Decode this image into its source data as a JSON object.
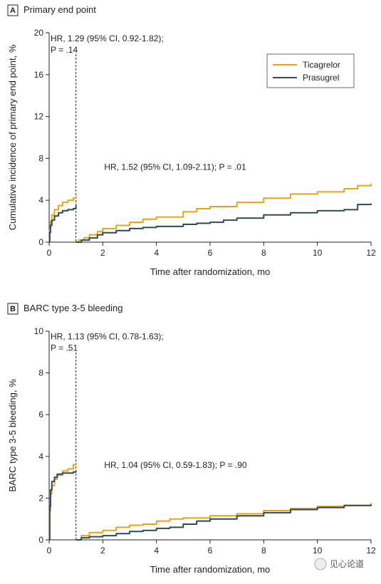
{
  "colors": {
    "ticagrelor": "#e8a317",
    "prasugrel": "#2e4a55"
  },
  "chart_data": [
    {
      "type": "line",
      "panel_letter": "A",
      "title": "Primary end point",
      "xlabel": "Time after randomization, mo",
      "ylabel": "Cumulative incidence of primary end point, %",
      "xlim": [
        0,
        12
      ],
      "ylim": [
        0,
        20
      ],
      "xticks": [
        0,
        2,
        4,
        6,
        8,
        10,
        12
      ],
      "yticks": [
        0,
        4,
        8,
        12,
        16,
        20
      ],
      "landmark_x": 1,
      "annotations": [
        {
          "lines": [
            "HR, 1.29 (95% CI, 0.92-1.82);",
            "P = .14"
          ],
          "anchor": [
            0,
            19.2
          ]
        },
        {
          "lines": [
            "HR, 1.52 (95% CI, 1.09-2.11); P = .01"
          ],
          "anchor": [
            2,
            6.9
          ]
        }
      ],
      "legend": {
        "placement": "top-right",
        "entries": [
          "Ticagrelor",
          "Prasugrel"
        ]
      },
      "series": [
        {
          "name": "Ticagrelor",
          "color_key": "ticagrelor",
          "segments": [
            [
              [
                0,
                0
              ],
              [
                0.02,
                1.2
              ],
              [
                0.05,
                2.0
              ],
              [
                0.1,
                2.6
              ],
              [
                0.2,
                3.1
              ],
              [
                0.35,
                3.5
              ],
              [
                0.5,
                3.8
              ],
              [
                0.7,
                4.0
              ],
              [
                0.9,
                4.2
              ],
              [
                1.0,
                4.4
              ]
            ],
            [
              [
                1.0,
                0
              ],
              [
                1.1,
                0.2
              ],
              [
                1.3,
                0.4
              ],
              [
                1.5,
                0.7
              ],
              [
                1.8,
                1.0
              ],
              [
                2.0,
                1.3
              ],
              [
                2.5,
                1.6
              ],
              [
                3.0,
                1.9
              ],
              [
                3.5,
                2.2
              ],
              [
                4,
                2.4
              ],
              [
                5,
                2.9
              ],
              [
                5.5,
                3.2
              ],
              [
                6,
                3.4
              ],
              [
                7,
                3.8
              ],
              [
                8,
                4.2
              ],
              [
                9,
                4.6
              ],
              [
                10,
                4.8
              ],
              [
                11,
                5.1
              ],
              [
                11.5,
                5.4
              ],
              [
                12,
                5.6
              ]
            ]
          ]
        },
        {
          "name": "Prasugrel",
          "color_key": "prasugrel",
          "segments": [
            [
              [
                0,
                0
              ],
              [
                0.02,
                0.9
              ],
              [
                0.05,
                1.6
              ],
              [
                0.1,
                2.1
              ],
              [
                0.2,
                2.5
              ],
              [
                0.35,
                2.8
              ],
              [
                0.5,
                3.0
              ],
              [
                0.7,
                3.1
              ],
              [
                0.9,
                3.2
              ],
              [
                1.0,
                3.5
              ]
            ],
            [
              [
                1.0,
                0
              ],
              [
                1.2,
                0.2
              ],
              [
                1.5,
                0.4
              ],
              [
                1.8,
                0.7
              ],
              [
                2.0,
                0.9
              ],
              [
                2.5,
                1.1
              ],
              [
                3.0,
                1.3
              ],
              [
                3.5,
                1.4
              ],
              [
                4,
                1.5
              ],
              [
                5,
                1.7
              ],
              [
                5.5,
                1.8
              ],
              [
                6,
                1.9
              ],
              [
                6.5,
                2.1
              ],
              [
                7,
                2.3
              ],
              [
                8,
                2.6
              ],
              [
                9,
                2.8
              ],
              [
                10,
                3.0
              ],
              [
                11,
                3.1
              ],
              [
                11.5,
                3.6
              ],
              [
                12,
                3.7
              ]
            ]
          ]
        }
      ]
    },
    {
      "type": "line",
      "panel_letter": "B",
      "title": "BARC type 3-5 bleeding",
      "xlabel": "Time after randomization, mo",
      "ylabel": "BARC type 3-5 bleeding, %",
      "xlim": [
        0,
        12
      ],
      "ylim": [
        0,
        10
      ],
      "xticks": [
        0,
        2,
        4,
        6,
        8,
        10,
        12
      ],
      "yticks": [
        0,
        2,
        4,
        6,
        8,
        10
      ],
      "landmark_x": 1,
      "annotations": [
        {
          "lines": [
            "HR, 1.13 (95% CI, 0.78-1.63);",
            "P = .51"
          ],
          "anchor": [
            0,
            9.6
          ]
        },
        {
          "lines": [
            "HR, 1.04 (95% CI, 0.59-1.83); P = .90"
          ],
          "anchor": [
            2,
            3.45
          ]
        }
      ],
      "series": [
        {
          "name": "Ticagrelor",
          "color_key": "ticagrelor",
          "segments": [
            [
              [
                0,
                0
              ],
              [
                0.02,
                1.4
              ],
              [
                0.05,
                2.2
              ],
              [
                0.1,
                2.6
              ],
              [
                0.2,
                2.9
              ],
              [
                0.3,
                3.1
              ],
              [
                0.5,
                3.3
              ],
              [
                0.7,
                3.4
              ],
              [
                0.9,
                3.6
              ],
              [
                1.0,
                3.7
              ]
            ],
            [
              [
                1.0,
                0
              ],
              [
                1.2,
                0.2
              ],
              [
                1.5,
                0.35
              ],
              [
                2,
                0.45
              ],
              [
                2.5,
                0.6
              ],
              [
                3,
                0.7
              ],
              [
                3.5,
                0.75
              ],
              [
                4,
                0.9
              ],
              [
                4.5,
                1.0
              ],
              [
                5,
                1.05
              ],
              [
                6,
                1.15
              ],
              [
                7,
                1.25
              ],
              [
                8,
                1.4
              ],
              [
                9,
                1.5
              ],
              [
                10,
                1.6
              ],
              [
                11,
                1.65
              ],
              [
                12,
                1.75
              ]
            ]
          ]
        },
        {
          "name": "Prasugrel",
          "color_key": "prasugrel",
          "segments": [
            [
              [
                0,
                0
              ],
              [
                0.02,
                1.6
              ],
              [
                0.05,
                2.4
              ],
              [
                0.1,
                2.8
              ],
              [
                0.2,
                3.0
              ],
              [
                0.3,
                3.15
              ],
              [
                0.5,
                3.2
              ],
              [
                0.7,
                3.2
              ],
              [
                0.9,
                3.25
              ],
              [
                1.0,
                3.3
              ]
            ],
            [
              [
                1.0,
                0
              ],
              [
                1.2,
                0.1
              ],
              [
                1.5,
                0.15
              ],
              [
                2,
                0.2
              ],
              [
                2.5,
                0.3
              ],
              [
                3,
                0.4
              ],
              [
                3.5,
                0.45
              ],
              [
                4,
                0.55
              ],
              [
                4.5,
                0.6
              ],
              [
                5,
                0.75
              ],
              [
                5.5,
                0.9
              ],
              [
                6,
                1.0
              ],
              [
                7,
                1.15
              ],
              [
                8,
                1.3
              ],
              [
                9,
                1.45
              ],
              [
                10,
                1.55
              ],
              [
                11,
                1.65
              ],
              [
                12,
                1.7
              ]
            ]
          ]
        }
      ]
    }
  ],
  "watermark": "见心论道"
}
